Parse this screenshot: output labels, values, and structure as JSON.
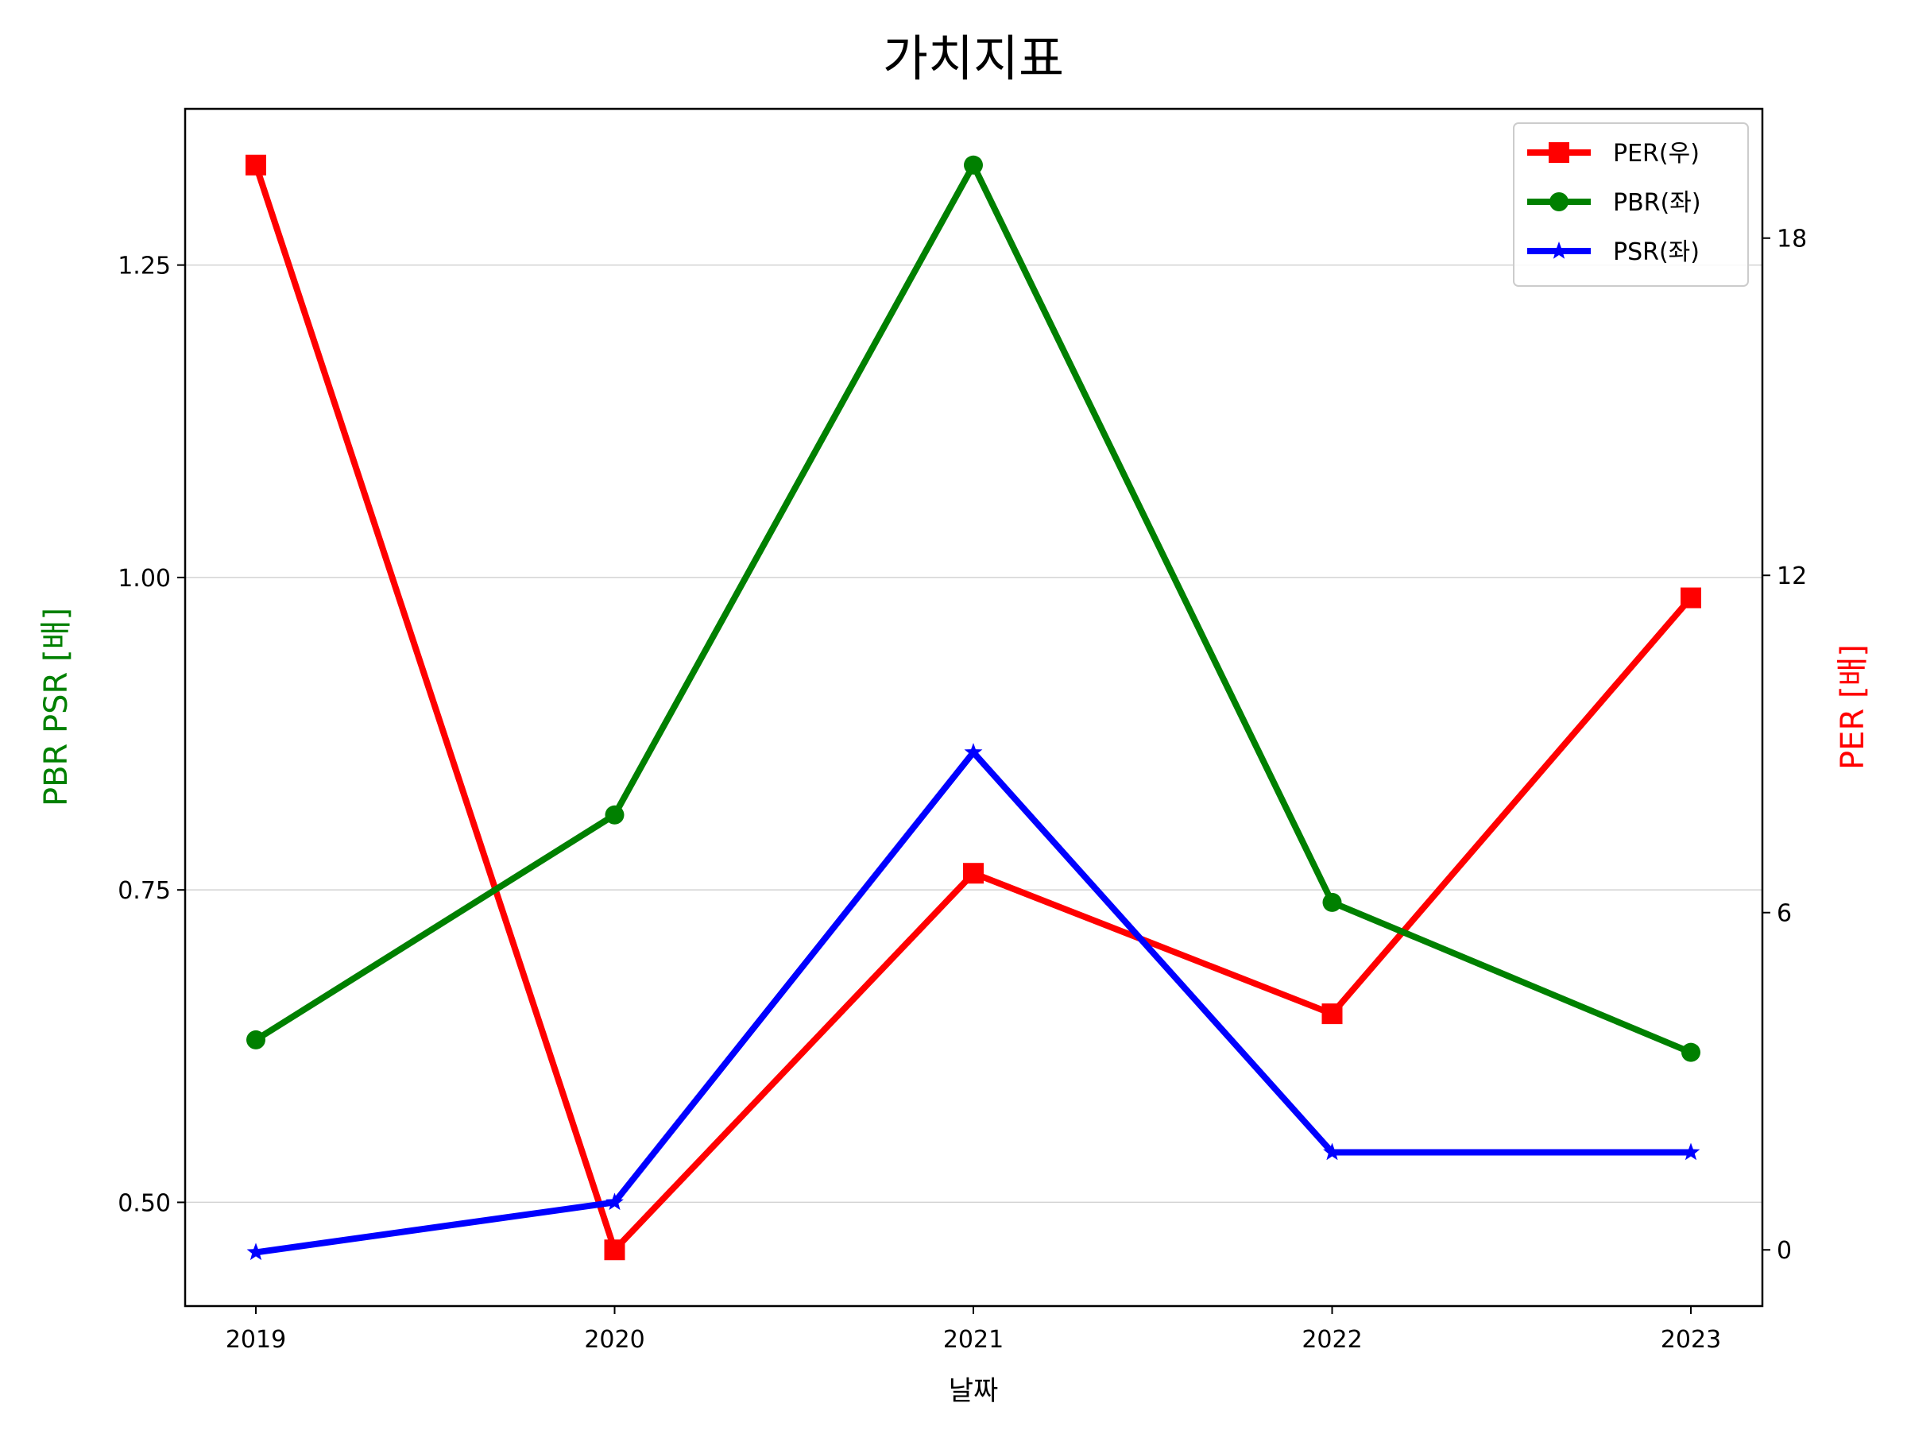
{
  "chart_data": {
    "type": "line",
    "title": "가치지표",
    "xlabel": "날짜",
    "ylabel_left": "PBR PSR [배]",
    "ylabel_right": "PER [배]",
    "categories": [
      "2019",
      "2020",
      "2021",
      "2022",
      "2023"
    ],
    "left_axis": {
      "ylim": [
        0.417,
        1.375
      ],
      "ticks": [
        0.5,
        0.75,
        1.0,
        1.25
      ],
      "tick_labels": [
        "0.50",
        "0.75",
        "1.00",
        "1.25"
      ],
      "label_color": "#008000"
    },
    "right_axis": {
      "ylim": [
        -1.0,
        20.3
      ],
      "ticks": [
        0,
        6,
        12,
        18
      ],
      "tick_labels": [
        "0",
        "6",
        "12",
        "18"
      ],
      "label_color": "#ff0000"
    },
    "series": [
      {
        "name": "PER(우)",
        "axis": "right",
        "color": "#ff0000",
        "marker": "square",
        "values": [
          19.3,
          0.0,
          6.7,
          4.2,
          11.6
        ]
      },
      {
        "name": "PBR(좌)",
        "axis": "left",
        "color": "#008000",
        "marker": "circle",
        "values": [
          0.63,
          0.81,
          1.33,
          0.74,
          0.62
        ]
      },
      {
        "name": "PSR(좌)",
        "axis": "left",
        "color": "#0000ff",
        "marker": "star",
        "values": [
          0.46,
          0.5,
          0.86,
          0.54,
          0.54
        ]
      }
    ],
    "grid": "horizontal (left axis)",
    "legend_position": "top-right"
  }
}
